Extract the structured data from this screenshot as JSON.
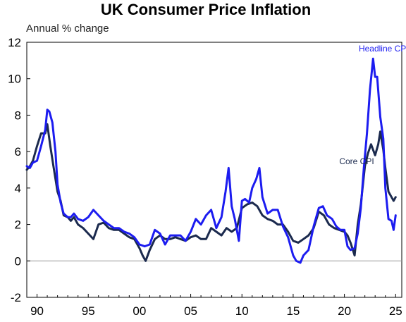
{
  "chart_data": {
    "type": "line",
    "title": "UK Consumer Price Inflation",
    "subtitle": "Annual % change",
    "xlabel": "",
    "ylabel": "",
    "xlim": [
      1989.0,
      2025.6
    ],
    "ylim": [
      -2,
      12
    ],
    "yticks": [
      -2,
      0,
      2,
      4,
      6,
      8,
      10,
      12
    ],
    "xticks": [
      {
        "value": 1990,
        "label": "90"
      },
      {
        "value": 1995,
        "label": "95"
      },
      {
        "value": 2000,
        "label": "00"
      },
      {
        "value": 2005,
        "label": "05"
      },
      {
        "value": 2010,
        "label": "10"
      },
      {
        "value": 2015,
        "label": "15"
      },
      {
        "value": 2020,
        "label": "20"
      },
      {
        "value": 2025,
        "label": "25"
      }
    ],
    "grid": false,
    "zero_line": true,
    "series": [
      {
        "name": "Headline CPI",
        "color": "#1c1cf0",
        "x": [
          1989.0,
          1989.3,
          1989.6,
          1990.0,
          1990.4,
          1990.8,
          1991.0,
          1991.2,
          1991.5,
          1991.8,
          1992.0,
          1992.3,
          1992.6,
          1993.0,
          1993.3,
          1993.6,
          1994.0,
          1994.5,
          1995.0,
          1995.5,
          1996.0,
          1996.5,
          1997.0,
          1997.5,
          1998.0,
          1998.5,
          1999.0,
          1999.5,
          2000.0,
          2000.5,
          2001.0,
          2001.5,
          2002.0,
          2002.5,
          2003.0,
          2003.5,
          2004.0,
          2004.5,
          2005.0,
          2005.5,
          2006.0,
          2006.5,
          2007.0,
          2007.5,
          2008.0,
          2008.4,
          2008.7,
          2009.0,
          2009.3,
          2009.7,
          2010.0,
          2010.3,
          2010.7,
          2011.0,
          2011.4,
          2011.7,
          2012.0,
          2012.5,
          2013.0,
          2013.5,
          2014.0,
          2014.5,
          2015.0,
          2015.3,
          2015.7,
          2016.0,
          2016.5,
          2017.0,
          2017.5,
          2017.9,
          2018.3,
          2018.8,
          2019.2,
          2019.6,
          2020.0,
          2020.3,
          2020.6,
          2021.0,
          2021.3,
          2021.6,
          2021.9,
          2022.2,
          2022.5,
          2022.8,
          2023.0,
          2023.2,
          2023.5,
          2023.8,
          2024.0,
          2024.3,
          2024.6,
          2024.8,
          2025.0
        ],
        "values": [
          5.2,
          5.1,
          5.4,
          5.5,
          6.3,
          7.2,
          8.3,
          8.2,
          7.6,
          6.0,
          4.2,
          3.2,
          2.6,
          2.4,
          2.4,
          2.6,
          2.3,
          2.2,
          2.4,
          2.8,
          2.5,
          2.2,
          2.0,
          1.8,
          1.8,
          1.6,
          1.5,
          1.3,
          0.9,
          0.8,
          0.9,
          1.7,
          1.5,
          0.9,
          1.4,
          1.4,
          1.4,
          1.1,
          1.6,
          2.3,
          2.0,
          2.5,
          2.8,
          1.8,
          2.4,
          3.8,
          5.1,
          3.0,
          2.3,
          1.1,
          3.3,
          3.4,
          3.2,
          4.0,
          4.5,
          5.1,
          3.5,
          2.6,
          2.8,
          2.8,
          1.9,
          1.3,
          0.3,
          0.0,
          -0.1,
          0.3,
          0.6,
          1.9,
          2.9,
          3.0,
          2.5,
          2.3,
          1.9,
          1.7,
          1.7,
          0.8,
          0.6,
          0.7,
          1.5,
          2.9,
          5.1,
          7.0,
          9.4,
          11.1,
          10.1,
          10.1,
          7.9,
          6.7,
          4.0,
          2.3,
          2.2,
          1.7,
          2.5
        ]
      },
      {
        "name": "Core CPI",
        "color": "#1b2a4e",
        "x": [
          1989.0,
          1989.3,
          1989.6,
          1990.0,
          1990.4,
          1990.8,
          1991.0,
          1991.3,
          1991.6,
          1992.0,
          1992.3,
          1992.6,
          1993.0,
          1993.3,
          1993.6,
          1994.0,
          1994.5,
          1995.0,
          1995.5,
          1996.0,
          1996.5,
          1997.0,
          1997.5,
          1998.0,
          1998.5,
          1999.0,
          1999.5,
          2000.0,
          2000.3,
          2000.6,
          2001.0,
          2001.5,
          2002.0,
          2002.5,
          2003.0,
          2003.5,
          2004.0,
          2004.5,
          2005.0,
          2005.5,
          2006.0,
          2006.5,
          2007.0,
          2007.5,
          2008.0,
          2008.5,
          2009.0,
          2009.5,
          2010.0,
          2010.5,
          2011.0,
          2011.5,
          2012.0,
          2012.5,
          2013.0,
          2013.5,
          2014.0,
          2014.5,
          2015.0,
          2015.5,
          2016.0,
          2016.5,
          2017.0,
          2017.5,
          2018.0,
          2018.5,
          2019.0,
          2019.5,
          2020.0,
          2020.3,
          2020.6,
          2021.0,
          2021.3,
          2021.6,
          2022.0,
          2022.3,
          2022.6,
          2023.0,
          2023.3,
          2023.5,
          2023.8,
          2024.0,
          2024.3,
          2024.6,
          2024.8,
          2025.0
        ],
        "values": [
          5.0,
          5.2,
          5.5,
          6.3,
          7.0,
          7.0,
          7.5,
          6.3,
          5.2,
          3.8,
          3.3,
          2.5,
          2.4,
          2.2,
          2.4,
          2.0,
          1.8,
          1.5,
          1.2,
          2.0,
          2.1,
          1.8,
          1.7,
          1.7,
          1.5,
          1.3,
          1.2,
          0.7,
          0.3,
          0.0,
          0.6,
          1.2,
          1.4,
          1.2,
          1.2,
          1.3,
          1.2,
          1.1,
          1.3,
          1.4,
          1.2,
          1.2,
          1.8,
          1.6,
          1.4,
          1.8,
          1.6,
          1.8,
          2.9,
          3.1,
          3.2,
          3.0,
          2.5,
          2.3,
          2.2,
          2.0,
          2.0,
          1.6,
          1.1,
          1.0,
          1.2,
          1.4,
          1.8,
          2.7,
          2.5,
          2.0,
          1.8,
          1.7,
          1.6,
          1.4,
          1.0,
          0.3,
          2.0,
          3.1,
          5.2,
          5.9,
          6.4,
          5.8,
          6.4,
          7.1,
          6.1,
          5.1,
          3.8,
          3.5,
          3.3,
          3.5
        ]
      }
    ],
    "annotations": [
      {
        "text": "Headline CPI",
        "series": "Headline CPI",
        "x": 2021.4,
        "y": 11.5
      },
      {
        "text": "Core CPI",
        "series": "Core CPI",
        "x": 2019.5,
        "y": 5.3
      }
    ]
  }
}
